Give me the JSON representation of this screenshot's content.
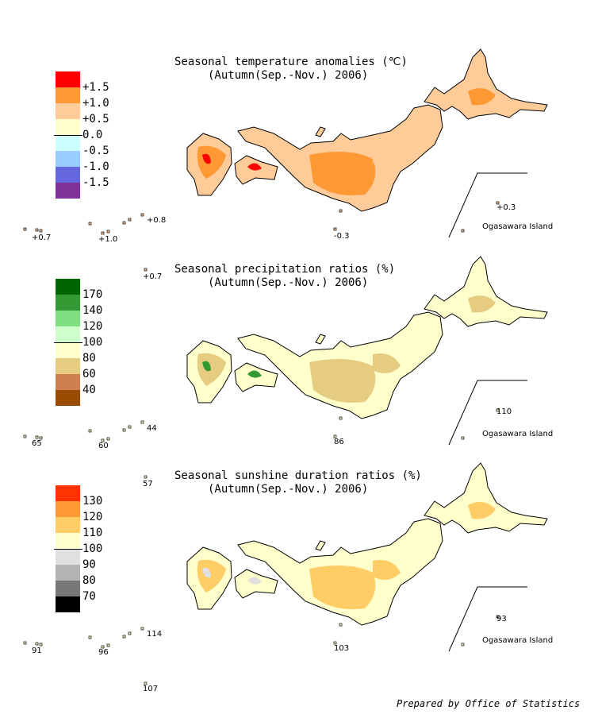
{
  "panels": [
    {
      "title": "Seasonal temperature anomalies (℃)",
      "subtitle": "(Autumn(Sep.-Nov.) 2006)",
      "legend": {
        "colors": [
          "#ff0000",
          "#ff9933",
          "#ffcc99",
          "#ffffcc",
          "#ccffff",
          "#99ccff",
          "#6666dd",
          "#7f3399"
        ],
        "labels": [
          "+1.5",
          "+1.0",
          "+0.5",
          "0.0",
          "-0.5",
          "-1.0",
          "-1.5"
        ]
      },
      "main_fill": "#ff9933",
      "secondary_fill": "#ffcc99",
      "accent_fill": "#ff0000",
      "island_values": [
        "+0.7",
        "+1.0",
        "+0.8",
        "+0.7",
        "-0.3",
        "+0.3"
      ],
      "ogasawara_label": "Ogasawara Island"
    },
    {
      "title": "Seasonal precipitation ratios (%)",
      "subtitle": "(Autumn(Sep.-Nov.) 2006)",
      "legend": {
        "colors": [
          "#006600",
          "#339933",
          "#80dd80",
          "#ccffcc",
          "#ffffcc",
          "#e6cc80",
          "#cc8050",
          "#994c00"
        ],
        "labels": [
          "170",
          "140",
          "120",
          "100",
          "80",
          "60",
          "40"
        ]
      },
      "main_fill": "#ffffcc",
      "secondary_fill": "#e6cc80",
      "accent_fill": "#339933",
      "island_values": [
        "65",
        "60",
        "44",
        "57",
        "86",
        "110"
      ],
      "ogasawara_label": "Ogasawara Island"
    },
    {
      "title": "Seasonal sunshine duration ratios (%)",
      "subtitle": "(Autumn(Sep.-Nov.) 2006)",
      "legend": {
        "colors": [
          "#ff3300",
          "#ff9933",
          "#ffcc66",
          "#ffffcc",
          "#e0e0e0",
          "#b3b3b3",
          "#777777",
          "#000000"
        ],
        "labels": [
          "130",
          "120",
          "110",
          "100",
          "90",
          "80",
          "70"
        ]
      },
      "main_fill": "#ffffcc",
      "secondary_fill": "#ffcc66",
      "accent_fill": "#e0e0e0",
      "island_values": [
        "91",
        "96",
        "114",
        "107",
        "103",
        "93"
      ],
      "ogasawara_label": "Ogasawara Island"
    }
  ],
  "credit": "Prepared by Office of Statistics"
}
